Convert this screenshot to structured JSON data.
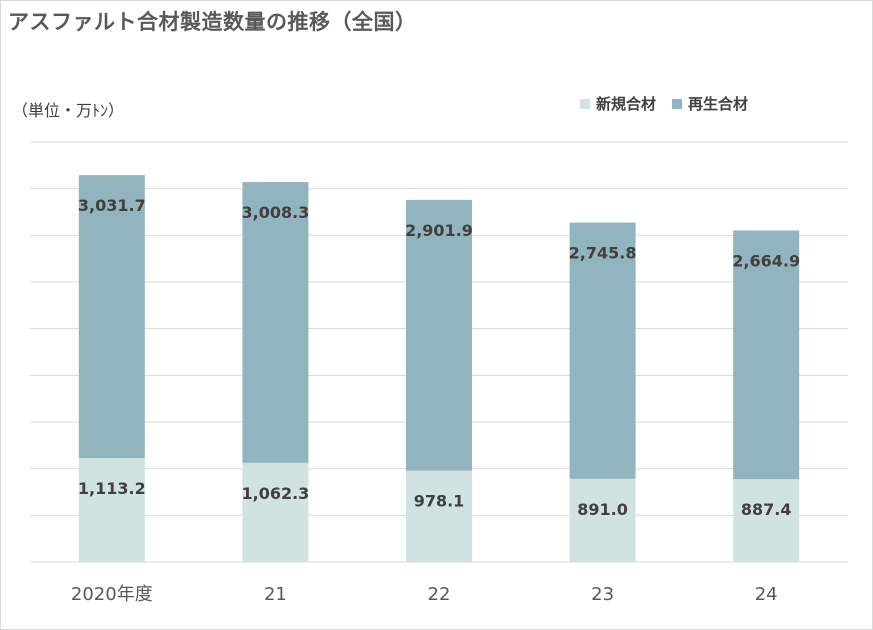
{
  "title": "アスファルト合材製造数量の推移（全国）",
  "unit_label": "（単位・万ﾄﾝ）",
  "colors": {
    "new_material": "#d1e3e1",
    "recycled_material": "#92b4be",
    "gridline": "#d9d9d9",
    "label_text": "#404040",
    "axis_text": "#595959"
  },
  "chart_data": {
    "type": "bar",
    "stacked": true,
    "categories": [
      "2020年度",
      "21",
      "22",
      "23",
      "24"
    ],
    "series": [
      {
        "name": "新規合材",
        "values": [
          1113.2,
          1062.3,
          978.1,
          891.0,
          887.4
        ]
      },
      {
        "name": "再生合材",
        "values": [
          3031.7,
          3008.3,
          2901.9,
          2745.8,
          2664.9
        ]
      }
    ],
    "value_labels": {
      "新規合材": [
        "1,113.2",
        "1,062.3",
        "978.1",
        "891.0",
        "887.4"
      ],
      "再生合材": [
        "3,031.7",
        "3,008.3",
        "2,901.9",
        "2,745.8",
        "2,664.9"
      ]
    },
    "ylim": [
      0,
      4500
    ],
    "grid": true,
    "y_tick_labels_shown": false,
    "legend_position": "top-right"
  }
}
